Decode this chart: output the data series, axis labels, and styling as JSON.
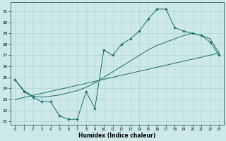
{
  "background_color": "#cce8e8",
  "grid_color": "#aacfcf",
  "line_color": "#1a6b6b",
  "xlabel": "Humidex (Indice chaleur)",
  "xlim": [
    -0.5,
    23.5
  ],
  "ylim": [
    20.7,
    31.8
  ],
  "yticks": [
    21,
    22,
    23,
    24,
    25,
    26,
    27,
    28,
    29,
    30,
    31
  ],
  "xticks": [
    0,
    1,
    2,
    3,
    4,
    5,
    6,
    7,
    8,
    9,
    10,
    11,
    12,
    13,
    14,
    15,
    16,
    17,
    18,
    19,
    20,
    21,
    22,
    23
  ],
  "curve1_x": [
    0,
    1,
    2,
    3,
    4,
    5,
    6,
    7,
    8,
    9,
    10,
    11,
    12,
    13,
    14,
    15,
    16,
    17,
    18,
    19,
    20,
    21,
    22,
    23
  ],
  "curve1_y": [
    24.8,
    23.7,
    23.2,
    22.8,
    22.8,
    21.5,
    21.2,
    21.2,
    23.7,
    22.2,
    27.5,
    27.0,
    28.0,
    28.5,
    29.2,
    30.3,
    31.2,
    31.2,
    29.5,
    29.2,
    29.0,
    28.8,
    28.2,
    27.0
  ],
  "curve2_x": [
    0,
    23
  ],
  "curve2_y": [
    23.0,
    27.2
  ],
  "curve3_x": [
    0,
    1,
    2,
    3,
    4,
    5,
    6,
    7,
    8,
    9,
    10,
    11,
    12,
    13,
    14,
    15,
    16,
    17,
    18,
    19,
    20,
    21,
    22,
    23
  ],
  "curve3_y": [
    24.8,
    23.8,
    23.3,
    23.2,
    23.3,
    23.4,
    23.6,
    23.8,
    24.1,
    24.5,
    25.0,
    25.5,
    26.0,
    26.5,
    27.0,
    27.5,
    27.9,
    28.2,
    28.5,
    28.8,
    29.0,
    28.8,
    28.5,
    27.2
  ]
}
